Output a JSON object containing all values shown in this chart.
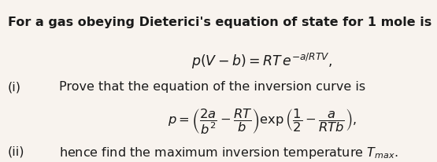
{
  "background_color": "#f8f3ee",
  "text_color": "#1a1a1a",
  "title_text": "For a gas obeying Dieterici's equation of state for 1 mole is",
  "equation1": "$p(V - b) = RT\\,e^{-a/RTV},$",
  "label_i": "(i)",
  "text_i": "Prove that the equation of the inversion curve is",
  "equation2": "$p = \\left(\\dfrac{2a}{b^2} - \\dfrac{RT}{b}\\right) \\exp\\left(\\dfrac{1}{2} - \\dfrac{a}{RTb}\\right),$",
  "label_ii": "(ii)",
  "text_ii": "hence find the maximum inversion temperature $T_{max}.$",
  "font_size_title": 11.5,
  "font_size_text": 11.5,
  "font_size_eq1": 12.5,
  "font_size_eq2": 11.8
}
